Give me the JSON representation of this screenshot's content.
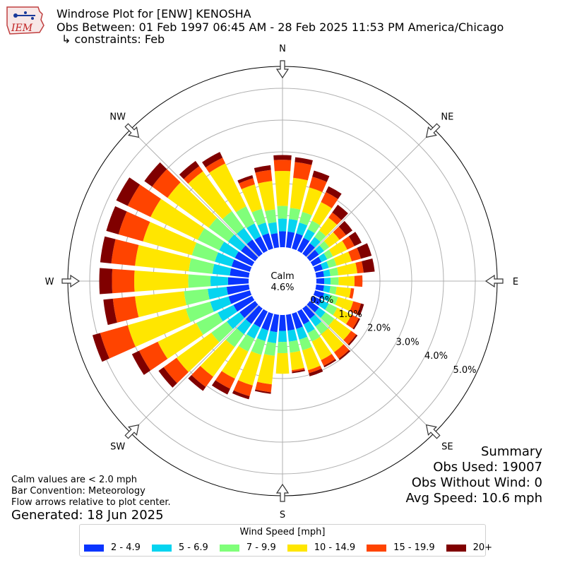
{
  "header": {
    "logo_text": "IEM",
    "title": "Windrose Plot for [ENW] KENOSHA",
    "subtitle": "Obs Between: 01 Feb 1997 06:45 AM - 28 Feb 2025 11:53 PM America/Chicago",
    "constraints": "↳ constraints: Feb"
  },
  "notes": {
    "calm_note": "Calm values are < 2.0 mph",
    "bar_convention": "Bar Convention: Meteorology",
    "flow_note": "Flow arrows relative to plot center.",
    "generated": "Generated: 18 Jun 2025"
  },
  "summary": {
    "title": "Summary",
    "obs_used": "Obs Used: 19007",
    "obs_without_wind": "Obs Without Wind: 0",
    "avg_speed": "Avg Speed: 10.6 mph"
  },
  "chart_data": {
    "type": "windrose",
    "calm_label": "Calm",
    "calm_value": "4.6%",
    "compass_labels": [
      "N",
      "NE",
      "E",
      "SE",
      "S",
      "SW",
      "W",
      "NW"
    ],
    "radial_ticks": [
      "0.0%",
      "1.0%",
      "2.0%",
      "3.0%",
      "4.0%",
      "5.0%"
    ],
    "radial_max": 5.6,
    "legend_title": "Wind Speed [mph]",
    "speed_bins": [
      {
        "label": "2 - 4.9",
        "color": "#0a35ff"
      },
      {
        "label": "5 - 6.9",
        "color": "#05d4f0"
      },
      {
        "label": "7 - 9.9",
        "color": "#80ff7a"
      },
      {
        "label": "10 - 14.9",
        "color": "#ffe600"
      },
      {
        "label": "15 - 19.9",
        "color": "#ff4400"
      },
      {
        "label": "20+",
        "color": "#800000"
      }
    ],
    "directions_deg": [
      0,
      10,
      20,
      30,
      40,
      50,
      60,
      70,
      80,
      90,
      100,
      110,
      120,
      130,
      140,
      150,
      160,
      170,
      180,
      190,
      200,
      210,
      220,
      230,
      240,
      250,
      260,
      270,
      280,
      290,
      300,
      310,
      320,
      330,
      340,
      350
    ],
    "cumulative_values": [
      [
        0.5,
        0.9,
        1.3,
        2.4,
        2.75,
        2.9
      ],
      [
        0.5,
        0.9,
        1.25,
        2.2,
        2.7,
        2.85
      ],
      [
        0.5,
        0.85,
        1.2,
        2.0,
        2.35,
        2.55
      ],
      [
        0.45,
        0.75,
        1.05,
        1.7,
        2.05,
        2.25
      ],
      [
        0.4,
        0.65,
        0.9,
        1.4,
        1.6,
        1.9
      ],
      [
        0.35,
        0.55,
        0.75,
        1.15,
        1.4,
        1.65
      ],
      [
        0.3,
        0.5,
        0.7,
        1.2,
        1.45,
        1.7
      ],
      [
        0.25,
        0.45,
        0.7,
        1.2,
        1.5,
        1.85
      ],
      [
        0.25,
        0.45,
        0.7,
        1.3,
        1.5,
        1.85
      ],
      [
        0.25,
        0.45,
        0.7,
        1.2,
        1.45,
        1.45
      ],
      [
        0.25,
        0.45,
        0.65,
        1.1,
        1.2,
        1.2
      ],
      [
        0.3,
        0.5,
        0.75,
        1.25,
        1.5,
        1.6
      ],
      [
        0.3,
        0.55,
        0.85,
        1.35,
        1.6,
        1.65
      ],
      [
        0.35,
        0.6,
        0.95,
        1.6,
        1.8,
        1.85
      ],
      [
        0.4,
        0.7,
        1.0,
        1.7,
        1.95,
        2.0
      ],
      [
        0.45,
        0.75,
        1.05,
        1.7,
        1.9,
        1.95
      ],
      [
        0.5,
        0.85,
        1.2,
        1.85,
        1.95,
        2.05
      ],
      [
        0.5,
        0.85,
        1.2,
        1.75,
        1.8,
        1.85
      ],
      [
        0.5,
        0.85,
        1.2,
        1.85,
        1.85,
        1.85
      ],
      [
        0.55,
        0.9,
        1.3,
        2.2,
        2.45,
        2.5
      ],
      [
        0.55,
        0.9,
        1.35,
        2.35,
        2.7,
        2.8
      ],
      [
        0.55,
        0.95,
        1.4,
        2.35,
        2.7,
        2.9
      ],
      [
        0.6,
        1.0,
        1.5,
        2.65,
        3.05,
        3.2
      ],
      [
        0.6,
        1.1,
        1.7,
        3.05,
        3.55,
        3.75
      ],
      [
        0.65,
        1.2,
        1.95,
        3.3,
        3.95,
        4.2
      ],
      [
        0.7,
        1.3,
        2.1,
        4.0,
        4.9,
        5.15
      ],
      [
        0.7,
        1.3,
        2.05,
        3.6,
        4.3,
        4.6
      ],
      [
        0.65,
        1.2,
        1.9,
        3.6,
        4.3,
        4.7
      ],
      [
        0.6,
        1.15,
        1.9,
        3.6,
        4.35,
        4.7
      ],
      [
        0.6,
        1.15,
        1.9,
        3.5,
        4.3,
        4.7
      ],
      [
        0.6,
        1.15,
        1.9,
        3.55,
        4.35,
        4.75
      ],
      [
        0.55,
        1.05,
        1.8,
        3.4,
        4.0,
        4.3
      ],
      [
        0.55,
        1.0,
        1.65,
        3.2,
        3.4,
        3.6
      ],
      [
        0.5,
        0.95,
        1.55,
        3.05,
        3.25,
        3.45
      ],
      [
        0.5,
        0.85,
        1.3,
        2.1,
        2.3,
        2.4
      ],
      [
        0.45,
        0.8,
        1.2,
        2.1,
        2.45,
        2.6
      ]
    ]
  }
}
